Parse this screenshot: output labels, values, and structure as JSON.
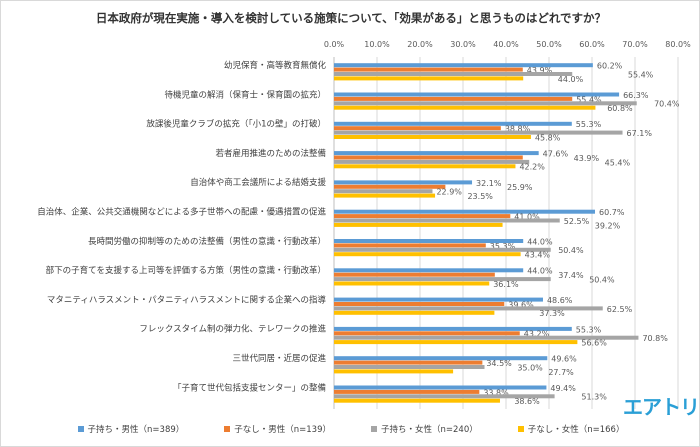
{
  "chart_data": {
    "type": "bar",
    "orientation": "horizontal",
    "title": "日本政府が現在実施・導入を検討している施策について、「効果がある」と思うものはどれですか？",
    "xlim": [
      0,
      80
    ],
    "ticks": [
      "0.0%",
      "10.0%",
      "20.0%",
      "30.0%",
      "40.0%",
      "50.0%",
      "60.0%",
      "70.0%",
      "80.0%"
    ],
    "grid": true,
    "legend_position": "bottom",
    "categories": [
      "幼児保育・高等教育無償化",
      "待機児童の解消（保育士・保育園の拡充）",
      "放課後児童クラブの拡充（「小1の壁」の打破）",
      "若者雇用推進のための法整備",
      "自治体や商工会議所による結婚支援",
      "自治体、企業、公共交通機関などによる多子世帯への配慮・優遇措置の促進",
      "長時間労働の抑制等のための法整備（男性の意識・行動改革）",
      "部下の子育てを支援する上司等を評価する方策（男性の意識・行動改革）",
      "マタニティハラスメント・パタニティハラスメントに関する企業への指導",
      "フレックスタイム制の弾力化、テレワークの推進",
      "三世代同居・近居の促進",
      "「子育て世代包括支援センター」の整備"
    ],
    "series": [
      {
        "name": "子持ち・男性（n=389）",
        "color": "#5b9bd5",
        "values": [
          60.2,
          66.3,
          55.3,
          47.6,
          32.1,
          60.7,
          44.0,
          44.0,
          48.6,
          55.3,
          49.6,
          49.4
        ]
      },
      {
        "name": "子なし・男性（n=139）",
        "color": "#ed7d31",
        "values": [
          43.9,
          55.4,
          38.8,
          43.9,
          25.9,
          41.0,
          35.3,
          37.4,
          39.6,
          43.2,
          34.5,
          33.8
        ]
      },
      {
        "name": "子持ち・女性（n=240）",
        "color": "#a5a5a5",
        "values": [
          55.4,
          70.4,
          67.1,
          45.4,
          22.9,
          52.5,
          50.4,
          50.4,
          62.5,
          70.8,
          35.0,
          51.3
        ]
      },
      {
        "name": "子なし・女性（n=166）",
        "color": "#ffc000",
        "values": [
          44.0,
          60.8,
          45.8,
          42.2,
          23.5,
          39.2,
          43.4,
          36.1,
          37.3,
          56.6,
          27.7,
          38.6
        ]
      }
    ]
  },
  "logo": "エアトリ"
}
